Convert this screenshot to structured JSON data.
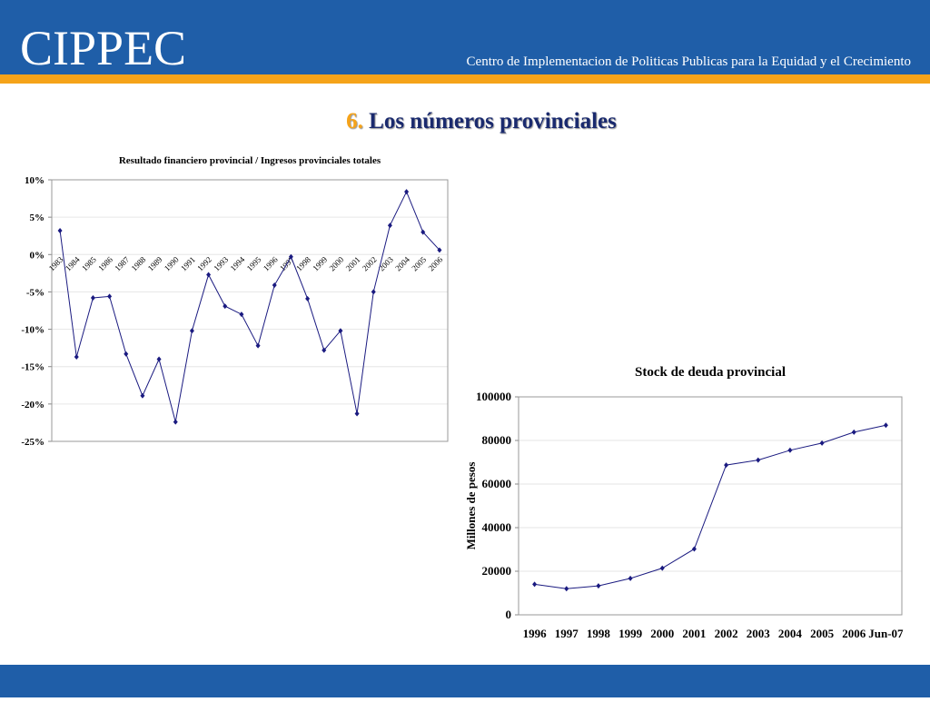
{
  "header": {
    "logo": "CIPPEC",
    "subtitle": "Centro de Implementacion de Politicas Publicas para la Equidad y el Crecimiento"
  },
  "slide": {
    "number": "6.",
    "title": "Los números provinciales"
  },
  "chart_data": [
    {
      "type": "line",
      "title": "Resultado financiero provincial / Ingresos provinciales totales",
      "categories": [
        "1983",
        "1984",
        "1985",
        "1986",
        "1987",
        "1988",
        "1989",
        "1990",
        "1991",
        "1992",
        "1993",
        "1994",
        "1995",
        "1996",
        "1997",
        "1998",
        "1999",
        "2000",
        "2001",
        "2002",
        "2003",
        "2004",
        "2005",
        "2006"
      ],
      "values": [
        3.2,
        -13.7,
        -5.8,
        -5.6,
        -13.3,
        -18.9,
        -14.0,
        -22.4,
        -10.2,
        -2.7,
        -6.9,
        -8.0,
        -12.2,
        -4.1,
        -0.3,
        -5.9,
        -12.8,
        -10.2,
        -21.3,
        -5.0,
        3.9,
        8.4,
        3.0,
        0.6
      ],
      "color": "#1a1a80",
      "ylim": [
        -25,
        10
      ],
      "yticks": [
        {
          "value": 10,
          "label": "10%"
        },
        {
          "value": 5,
          "label": "5%"
        },
        {
          "value": 0,
          "label": "0%"
        },
        {
          "value": -5,
          "label": "-5%"
        },
        {
          "value": -10,
          "label": "-10%"
        },
        {
          "value": -15,
          "label": "-15%"
        },
        {
          "value": -20,
          "label": "-20%"
        },
        {
          "value": -25,
          "label": "-25%"
        }
      ],
      "grid": true
    },
    {
      "type": "line",
      "title": "Stock de deuda provincial",
      "y_label": "Millones de pesos",
      "categories": [
        "1996",
        "1997",
        "1998",
        "1999",
        "2000",
        "2001",
        "2002",
        "2003",
        "2004",
        "2005",
        "2006",
        "Jun-07"
      ],
      "values": [
        14000,
        12000,
        13300,
        16700,
        21400,
        30200,
        68700,
        71000,
        75500,
        78800,
        83800,
        87000
      ],
      "color": "#1a1a80",
      "ylim": [
        0,
        100000
      ],
      "yticks": [
        0,
        20000,
        40000,
        60000,
        80000,
        100000
      ],
      "grid": true
    }
  ]
}
